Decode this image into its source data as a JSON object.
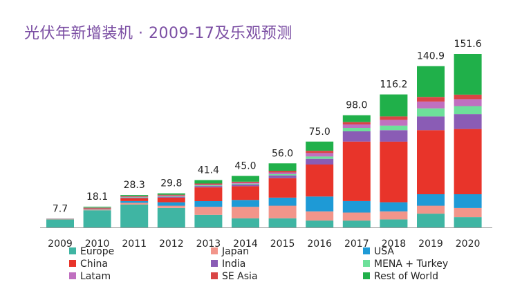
{
  "chart_data": {
    "type": "bar",
    "stacked": true,
    "title": "光伏年新增装机 · 2009-17及乐观预测",
    "categories": [
      "2009",
      "2010",
      "2011",
      "2012",
      "2013",
      "2014",
      "2015",
      "2016",
      "2017",
      "2018",
      "2019",
      "2020"
    ],
    "totals": [
      "7.7",
      "18.1",
      "28.3",
      "29.8",
      "41.4",
      "45.0",
      "56.0",
      "75.0",
      "98.0",
      "116.2",
      "140.9",
      "151.6"
    ],
    "series": [
      {
        "name": "Europe",
        "color": "#3fb5a3",
        "values": [
          7.0,
          15.0,
          20.0,
          17.0,
          11.0,
          8.0,
          8.0,
          6.0,
          6.0,
          7.0,
          12.0,
          9.0
        ]
      },
      {
        "name": "Japan",
        "color": "#f2958a",
        "values": [
          0.4,
          1.0,
          1.5,
          2.0,
          7.0,
          10.0,
          11.0,
          8.0,
          7.0,
          7.0,
          7.0,
          8.0
        ]
      },
      {
        "name": "USA",
        "color": "#1e9ad6",
        "values": [
          0.2,
          0.5,
          1.5,
          3.0,
          5.0,
          6.0,
          7.0,
          13.0,
          10.0,
          8.0,
          10.0,
          12.0
        ]
      },
      {
        "name": "China",
        "color": "#e8342a",
        "values": [
          0.1,
          0.5,
          2.5,
          4.0,
          12.0,
          12.0,
          17.0,
          28.0,
          52.0,
          53.0,
          56.0,
          57.0
        ]
      },
      {
        "name": "India",
        "color": "#8a5cb5",
        "values": [
          0.0,
          0.0,
          0.5,
          0.8,
          1.2,
          1.5,
          2.5,
          5.0,
          9.0,
          10.0,
          12.0,
          13.0
        ]
      },
      {
        "name": "MENA + Turkey",
        "color": "#6de09a",
        "values": [
          0.0,
          0.1,
          0.4,
          0.5,
          0.6,
          0.7,
          1.0,
          2.0,
          3.0,
          4.0,
          7.0,
          7.0
        ]
      },
      {
        "name": "Latam",
        "color": "#c070c0",
        "values": [
          0.0,
          0.1,
          0.4,
          0.5,
          0.6,
          0.8,
          1.5,
          3.0,
          3.0,
          5.0,
          6.0,
          6.0
        ]
      },
      {
        "name": "SE Asia",
        "color": "#d94545",
        "values": [
          0.0,
          0.2,
          0.5,
          0.8,
          1.0,
          1.0,
          1.5,
          2.0,
          2.0,
          3.0,
          4.0,
          4.0
        ]
      },
      {
        "name": "Rest of World",
        "color": "#20b04a",
        "values": [
          0.0,
          0.7,
          1.0,
          1.2,
          3.0,
          5.0,
          6.5,
          8.0,
          6.0,
          19.2,
          26.9,
          35.6
        ]
      }
    ],
    "xlabel": "",
    "ylabel": "",
    "ylim": [
      0,
      160
    ],
    "grid": false,
    "legend_position": "bottom"
  }
}
